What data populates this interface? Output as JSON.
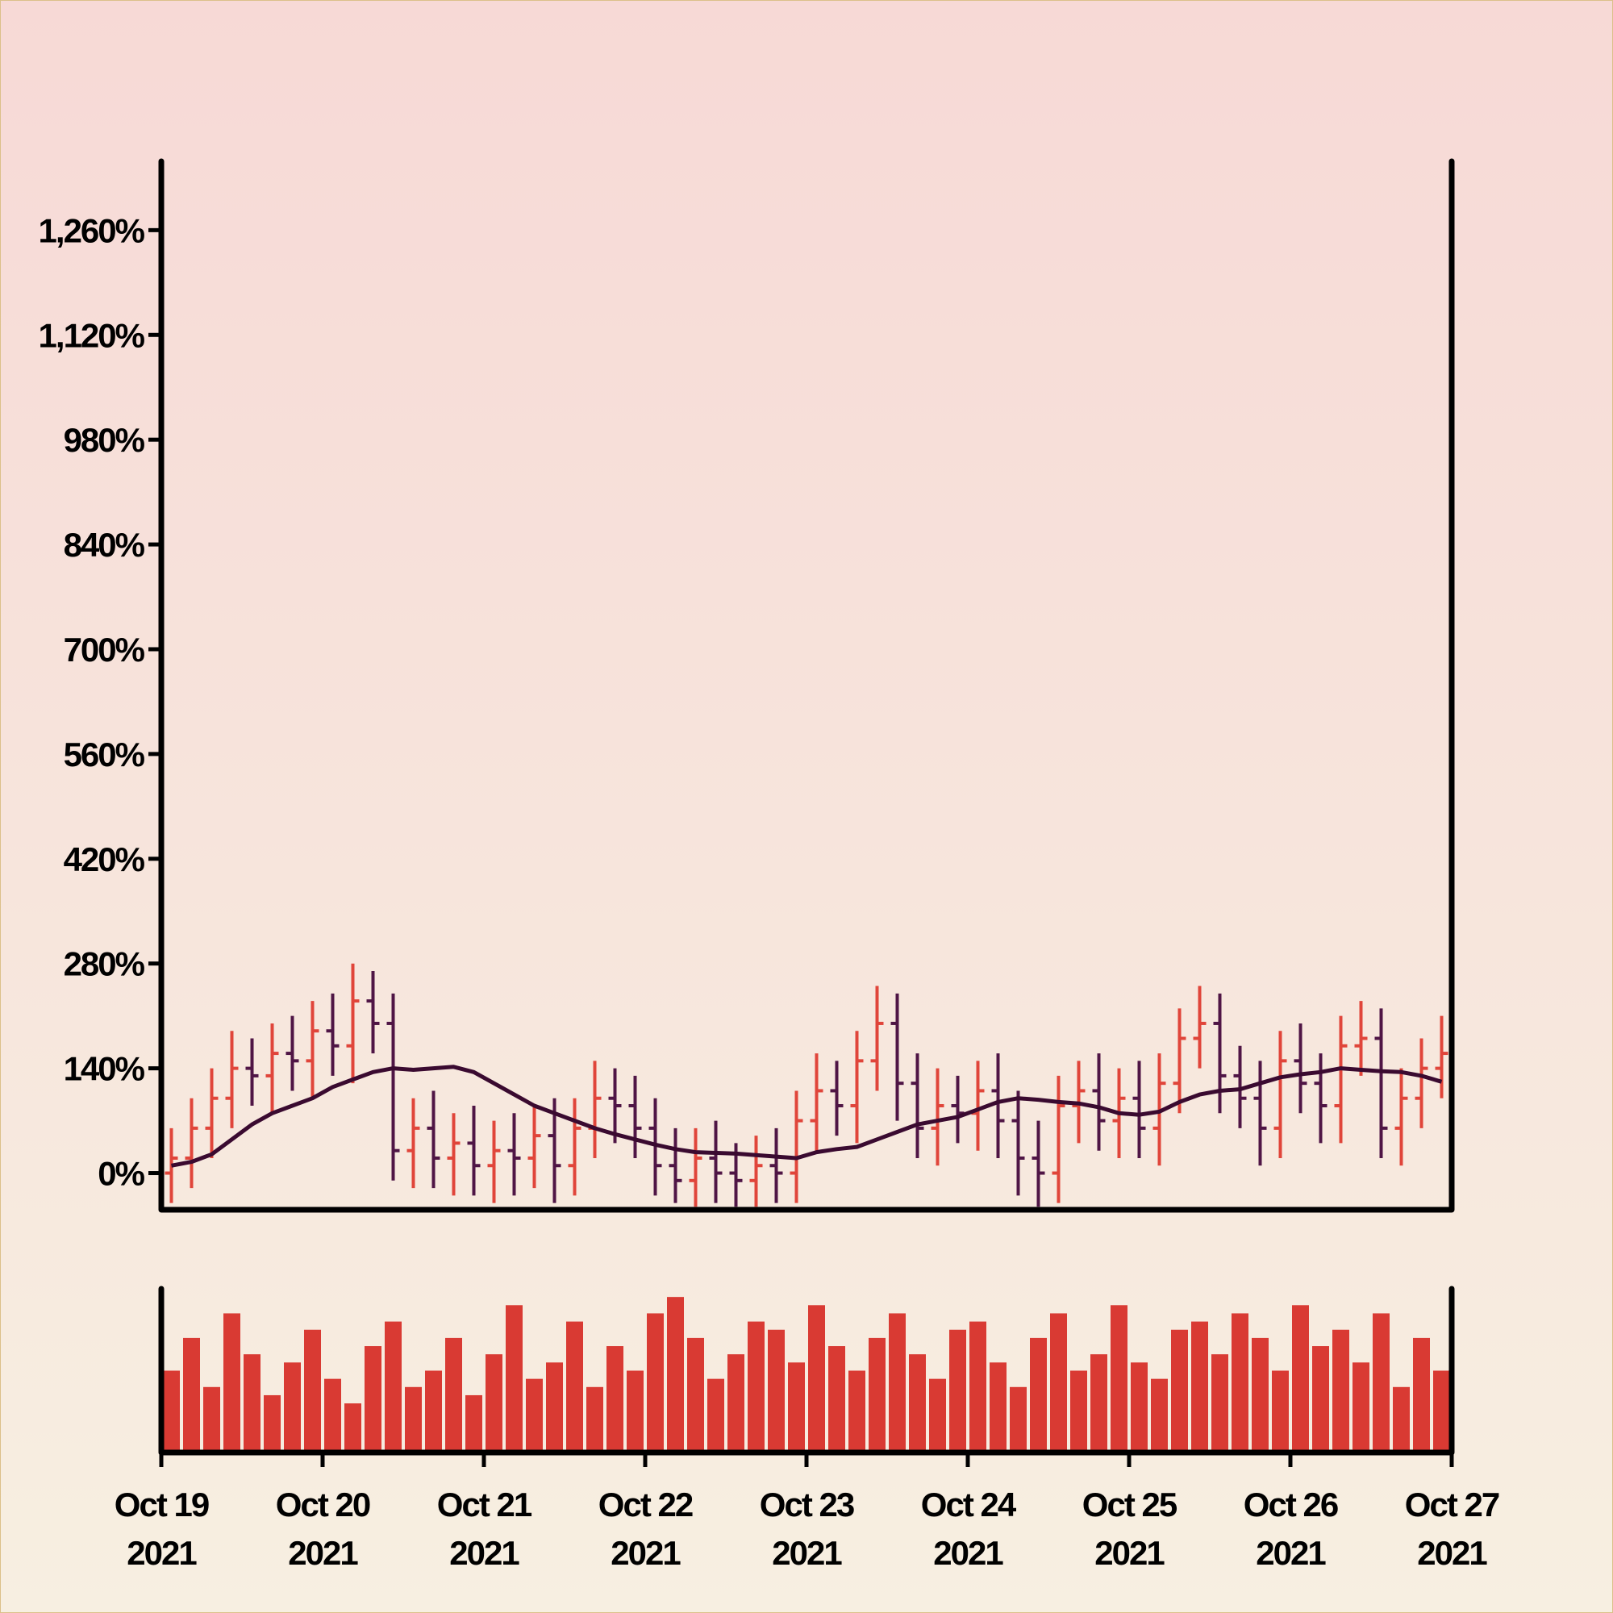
{
  "chart_data": [
    {
      "type": "ohlc",
      "x": [
        "2021-10-19T01:30",
        "2021-10-19T04:30",
        "2021-10-19T07:30",
        "2021-10-19T10:30",
        "2021-10-19T13:30",
        "2021-10-19T16:30",
        "2021-10-19T19:30",
        "2021-10-19T22:30",
        "2021-10-20T01:30",
        "2021-10-20T04:30",
        "2021-10-20T07:30",
        "2021-10-20T10:30",
        "2021-10-20T13:30",
        "2021-10-20T16:30",
        "2021-10-20T19:30",
        "2021-10-20T22:30",
        "2021-10-21T01:30",
        "2021-10-21T04:30",
        "2021-10-21T07:30",
        "2021-10-21T10:30",
        "2021-10-21T13:30",
        "2021-10-21T16:30",
        "2021-10-21T19:30",
        "2021-10-21T22:30",
        "2021-10-22T01:30",
        "2021-10-22T04:30",
        "2021-10-22T07:30",
        "2021-10-22T10:30",
        "2021-10-22T13:30",
        "2021-10-22T16:30",
        "2021-10-22T19:30",
        "2021-10-22T22:30",
        "2021-10-23T01:30",
        "2021-10-23T04:30",
        "2021-10-23T07:30",
        "2021-10-23T10:30",
        "2021-10-23T13:30",
        "2021-10-23T16:30",
        "2021-10-23T19:30",
        "2021-10-23T22:30",
        "2021-10-24T01:30",
        "2021-10-24T04:30",
        "2021-10-24T07:30",
        "2021-10-24T10:30",
        "2021-10-24T13:30",
        "2021-10-24T16:30",
        "2021-10-24T19:30",
        "2021-10-24T22:30",
        "2021-10-25T01:30",
        "2021-10-25T04:30",
        "2021-10-25T07:30",
        "2021-10-25T10:30",
        "2021-10-25T13:30",
        "2021-10-25T16:30",
        "2021-10-25T19:30",
        "2021-10-25T22:30",
        "2021-10-26T01:30",
        "2021-10-26T04:30",
        "2021-10-26T07:30",
        "2021-10-26T10:30",
        "2021-10-26T13:30",
        "2021-10-26T16:30",
        "2021-10-26T19:30",
        "2021-10-26T22:30"
      ],
      "open": [
        0,
        20,
        60,
        100,
        140,
        130,
        160,
        150,
        190,
        170,
        230,
        200,
        30,
        60,
        20,
        40,
        10,
        30,
        20,
        50,
        10,
        60,
        100,
        90,
        60,
        10,
        -10,
        20,
        0,
        -10,
        10,
        0,
        70,
        110,
        90,
        150,
        200,
        120,
        60,
        90,
        80,
        110,
        70,
        20,
        0,
        90,
        110,
        70,
        100,
        60,
        120,
        180,
        200,
        130,
        100,
        60,
        150,
        120,
        90,
        170,
        180,
        60,
        100,
        140
      ],
      "high": [
        60,
        100,
        140,
        190,
        180,
        200,
        210,
        230,
        240,
        280,
        270,
        240,
        100,
        110,
        80,
        90,
        70,
        80,
        90,
        100,
        100,
        150,
        140,
        130,
        100,
        60,
        60,
        70,
        40,
        50,
        60,
        110,
        160,
        150,
        190,
        250,
        240,
        160,
        140,
        130,
        150,
        160,
        110,
        70,
        130,
        150,
        160,
        140,
        150,
        160,
        220,
        250,
        240,
        170,
        150,
        190,
        200,
        160,
        210,
        230,
        220,
        140,
        180,
        210
      ],
      "low": [
        -40,
        -20,
        20,
        60,
        90,
        80,
        110,
        100,
        130,
        120,
        160,
        -10,
        -20,
        -20,
        -30,
        -30,
        -40,
        -30,
        -20,
        -40,
        -30,
        20,
        40,
        20,
        -30,
        -40,
        -45,
        -40,
        -45,
        -45,
        -40,
        -40,
        30,
        50,
        40,
        110,
        70,
        20,
        10,
        40,
        30,
        20,
        -30,
        -45,
        -40,
        40,
        30,
        20,
        20,
        10,
        80,
        140,
        80,
        60,
        10,
        20,
        80,
        40,
        40,
        130,
        20,
        10,
        60,
        100
      ],
      "close": [
        20,
        60,
        100,
        140,
        130,
        160,
        150,
        190,
        170,
        230,
        200,
        30,
        60,
        20,
        40,
        10,
        30,
        20,
        50,
        10,
        60,
        100,
        90,
        60,
        10,
        -10,
        20,
        0,
        -10,
        10,
        0,
        70,
        110,
        90,
        150,
        200,
        120,
        60,
        90,
        80,
        110,
        70,
        20,
        0,
        90,
        110,
        70,
        100,
        60,
        120,
        180,
        200,
        130,
        100,
        60,
        150,
        120,
        90,
        170,
        180,
        60,
        100,
        140,
        160
      ],
      "up_color": "#e0453a",
      "down_color": "#4f1545",
      "line": {
        "color": "#3a0a30",
        "values": [
          10,
          15,
          25,
          45,
          65,
          80,
          90,
          100,
          115,
          125,
          135,
          140,
          138,
          140,
          142,
          135,
          120,
          105,
          90,
          80,
          70,
          60,
          52,
          45,
          38,
          32,
          28,
          27,
          26,
          24,
          22,
          20,
          28,
          32,
          35,
          45,
          55,
          65,
          70,
          75,
          85,
          95,
          100,
          98,
          95,
          93,
          88,
          80,
          78,
          82,
          95,
          105,
          110,
          112,
          120,
          128,
          132,
          135,
          140,
          138,
          136,
          135,
          130,
          122
        ]
      },
      "xlim": [
        "2021-10-19T00:00",
        "2021-10-27T00:00"
      ],
      "ylim": [
        -49,
        1352
      ],
      "yticks": [
        {
          "value": 0,
          "label": "0%"
        },
        {
          "value": 140,
          "label": "140%"
        },
        {
          "value": 280,
          "label": "280%"
        },
        {
          "value": 420,
          "label": "420%"
        },
        {
          "value": 560,
          "label": "560%"
        },
        {
          "value": 700,
          "label": "700%"
        },
        {
          "value": 840,
          "label": "840%"
        },
        {
          "value": 980,
          "label": "980%"
        },
        {
          "value": 1120,
          "label": "1,120%"
        },
        {
          "value": 1260,
          "label": "1,260%"
        }
      ]
    },
    {
      "type": "bar",
      "color": "#d93a33",
      "values": [
        50,
        70,
        40,
        85,
        60,
        35,
        55,
        75,
        45,
        30,
        65,
        80,
        40,
        50,
        70,
        35,
        60,
        90,
        45,
        55,
        80,
        40,
        65,
        50,
        85,
        95,
        70,
        45,
        60,
        80,
        75,
        55,
        90,
        65,
        50,
        70,
        85,
        60,
        45,
        75,
        80,
        55,
        40,
        70,
        85,
        50,
        60,
        90,
        55,
        45,
        75,
        80,
        60,
        85,
        70,
        50,
        90,
        65,
        75,
        55,
        85,
        40,
        70,
        50
      ],
      "ylim": [
        0,
        100
      ],
      "xticks": [
        {
          "value": "2021-10-19T00:00",
          "label": [
            "Oct 19",
            "2021"
          ]
        },
        {
          "value": "2021-10-20T00:00",
          "label": [
            "Oct 20",
            "2021"
          ]
        },
        {
          "value": "2021-10-21T00:00",
          "label": [
            "Oct 21",
            "2021"
          ]
        },
        {
          "value": "2021-10-22T00:00",
          "label": [
            "Oct 22",
            "2021"
          ]
        },
        {
          "value": "2021-10-23T00:00",
          "label": [
            "Oct 23",
            "2021"
          ]
        },
        {
          "value": "2021-10-24T00:00",
          "label": [
            "Oct 24",
            "2021"
          ]
        },
        {
          "value": "2021-10-25T00:00",
          "label": [
            "Oct 25",
            "2021"
          ]
        },
        {
          "value": "2021-10-26T00:00",
          "label": [
            "Oct 26",
            "2021"
          ]
        },
        {
          "value": "2021-10-27T00:00",
          "label": [
            "Oct 27",
            "2021"
          ]
        }
      ]
    }
  ]
}
